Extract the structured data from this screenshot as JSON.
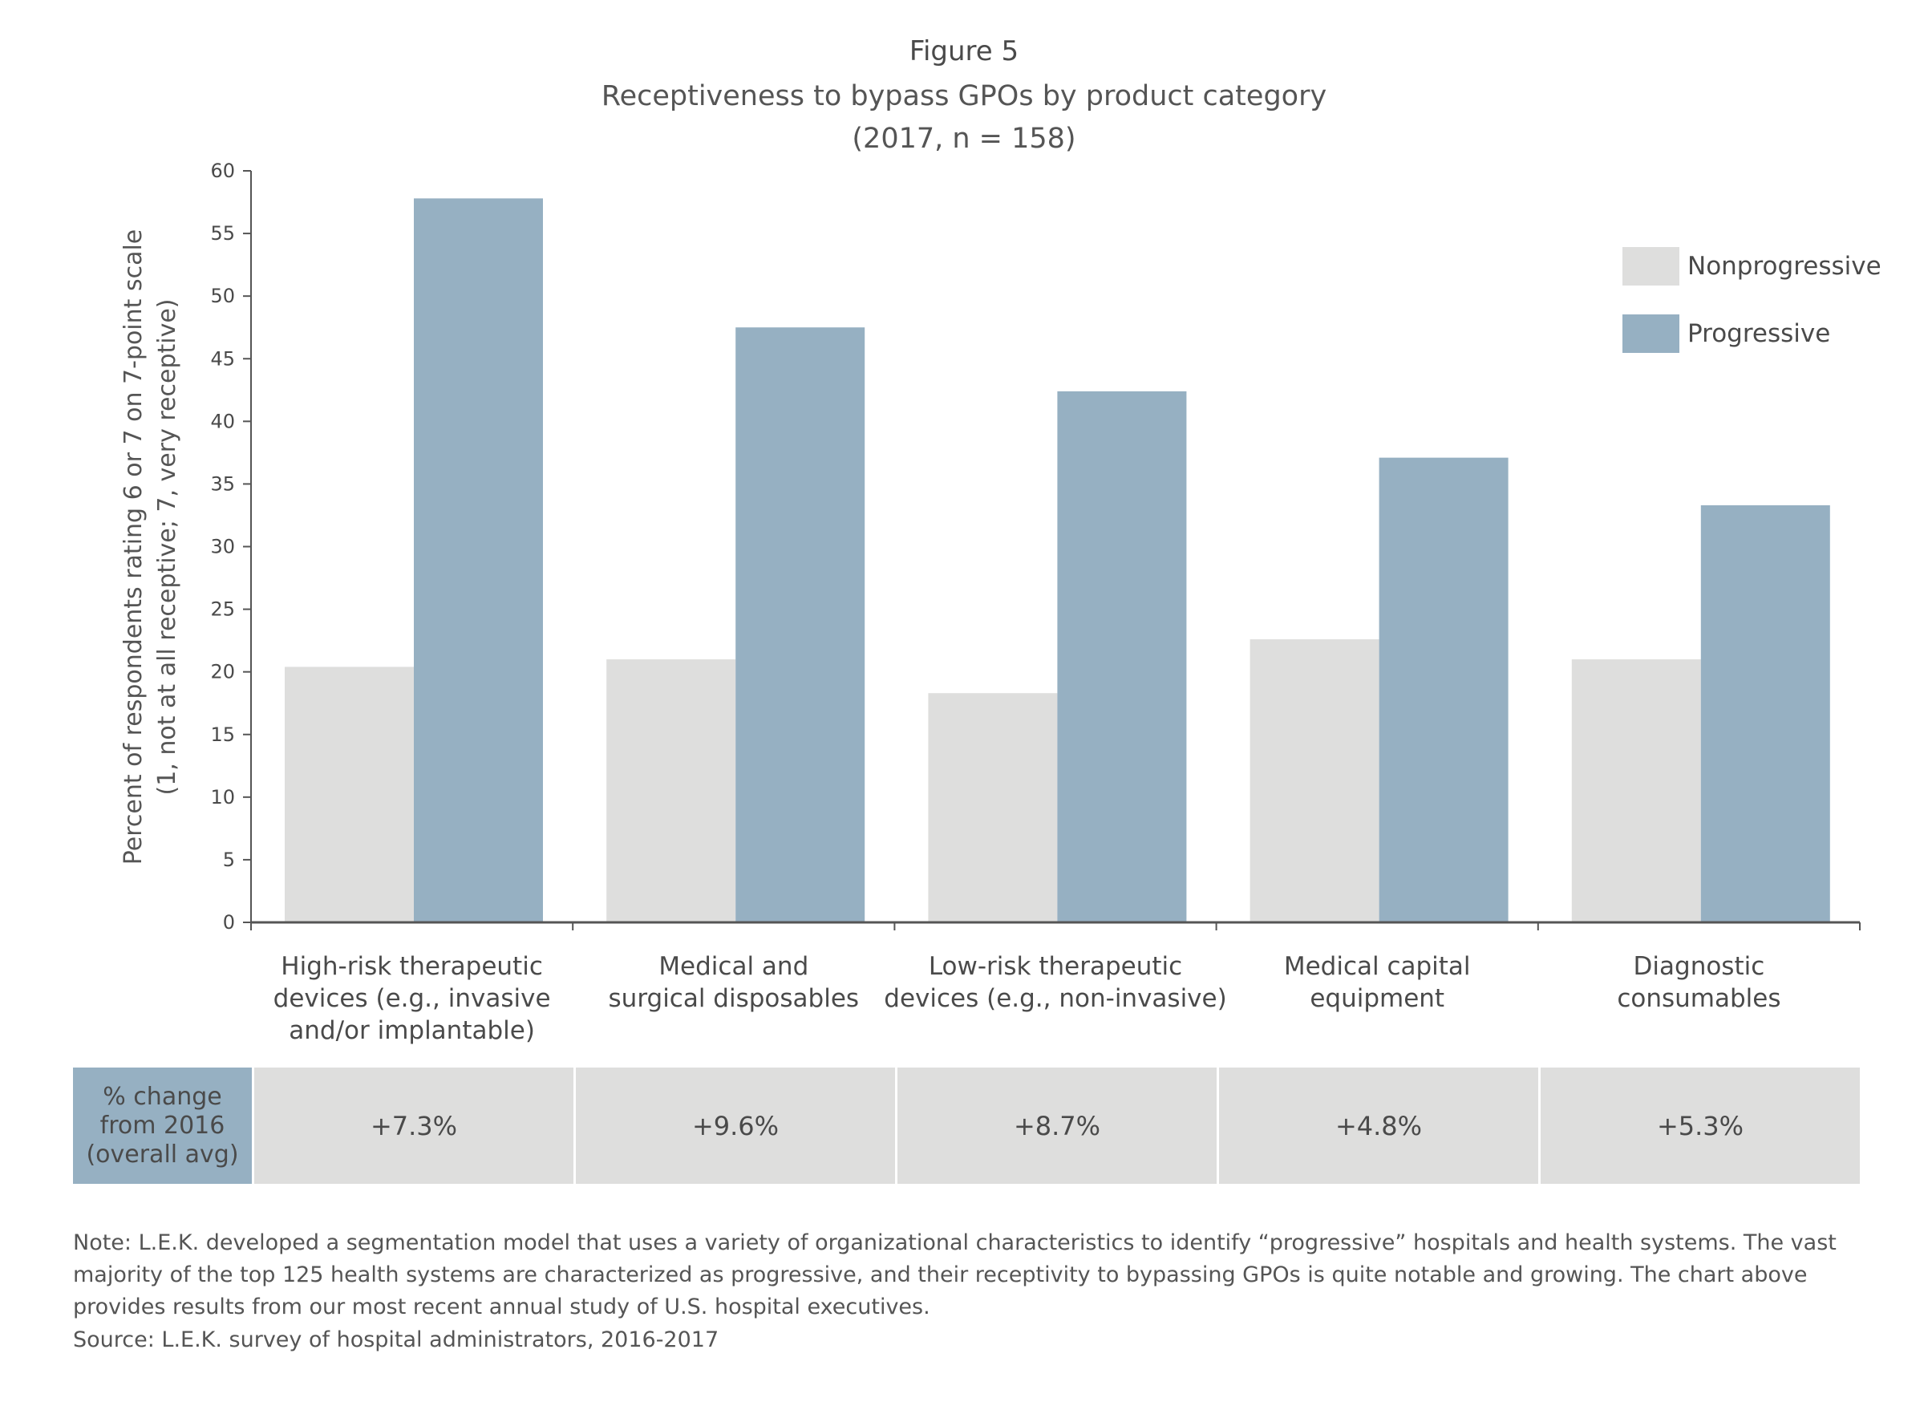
{
  "figure_title": "Figure 5",
  "figure_subtitle": "Receptiveness to bypass GPOs by product category\n(2017, n = 158)",
  "chart_data": {
    "type": "bar",
    "title": "Receptiveness to bypass GPOs by product category",
    "subtitle": "(2017, n = 158)",
    "ylabel_line1": "Percent of respondents rating 6 or 7 on 7-point scale",
    "ylabel_line2": "(1, not at all receptive; 7, very receptive)",
    "xlabel": "",
    "ylim": [
      0,
      60
    ],
    "yticks": [
      0,
      5,
      10,
      15,
      20,
      25,
      30,
      35,
      40,
      45,
      50,
      55,
      60
    ],
    "categories": [
      "High-risk therapeutic devices (e.g., invasive and/or implantable)",
      "Medical and surgical disposables",
      "Low-risk therapeutic devices (e.g., non-invasive)",
      "Medical capital equipment",
      "Diagnostic consumables"
    ],
    "category_lines": [
      [
        "High-risk therapeutic",
        "devices (e.g., invasive",
        "and/or implantable)"
      ],
      [
        "Medical and",
        "surgical disposables"
      ],
      [
        "Low-risk therapeutic",
        "devices (e.g., non-invasive)"
      ],
      [
        "Medical capital",
        "equipment"
      ],
      [
        "Diagnostic",
        "consumables"
      ]
    ],
    "series": [
      {
        "name": "Nonprogressive",
        "color": "#dededd",
        "values": [
          20.4,
          21.0,
          18.3,
          22.6,
          21.0
        ]
      },
      {
        "name": "Progressive",
        "color": "#96b0c2",
        "values": [
          57.8,
          47.5,
          42.4,
          37.1,
          33.3
        ]
      }
    ],
    "legend_position": "top-right",
    "grid": false
  },
  "change_table": {
    "header": "% change\nfrom 2016\n(overall avg)",
    "values": [
      "+7.3%",
      "+9.6%",
      "+8.7%",
      "+4.8%",
      "+5.3%"
    ]
  },
  "note": "Note: L.E.K. developed a segmentation model that uses a variety of organizational characteristics to identify “progressive” hospitals and health systems. The vast majority of the top 125 health systems are characterized as progressive, and their receptivity to bypassing GPOs is quite notable and growing. The chart above provides results from our most recent annual study of U.S. hospital executives.",
  "source": "Source: L.E.K. survey of hospital administrators, 2016-2017"
}
